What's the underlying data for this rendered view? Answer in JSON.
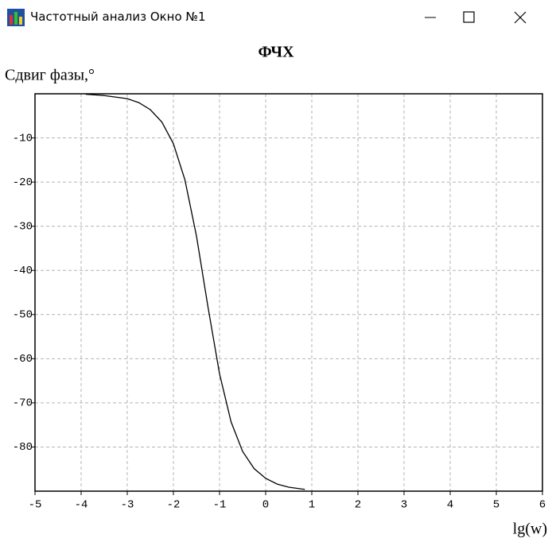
{
  "window": {
    "title": "Частотный анализ Окно №1"
  },
  "chart_data": {
    "type": "line",
    "title": "ФЧХ",
    "y_label": "Сдвиг фазы,°",
    "x_label": "lg(w)",
    "x": [
      -3.9,
      -3.5,
      -3.0,
      -2.75,
      -2.5,
      -2.25,
      -2.0,
      -1.75,
      -1.5,
      -1.25,
      -1.0,
      -0.75,
      -0.5,
      -0.25,
      0,
      0.25,
      0.5,
      0.85
    ],
    "series": [
      {
        "color": "#000000",
        "values": [
          -0.1,
          -0.4,
          -1.1,
          -2.0,
          -3.6,
          -6.4,
          -11.3,
          -19.5,
          -32.2,
          -48.3,
          -63.4,
          -74.3,
          -81.0,
          -84.9,
          -87.1,
          -88.4,
          -89.1,
          -89.6
        ]
      }
    ],
    "xlim": [
      -5,
      6
    ],
    "xticks": [
      -5,
      -4,
      -3,
      -2,
      -1,
      0,
      1,
      2,
      3,
      4,
      5,
      6
    ],
    "ylim": [
      -90,
      0
    ],
    "yticks": [
      -80,
      -70,
      -60,
      -50,
      -40,
      -30,
      -20,
      -10
    ],
    "grid": true
  }
}
